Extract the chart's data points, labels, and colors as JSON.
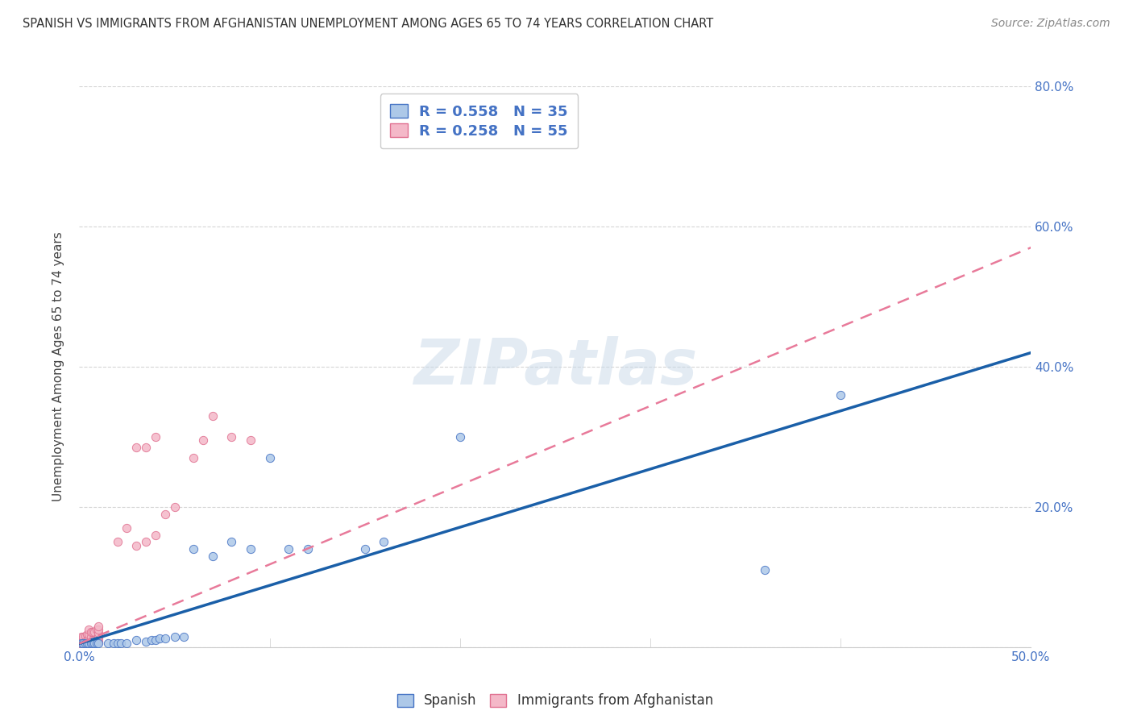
{
  "title": "SPANISH VS IMMIGRANTS FROM AFGHANISTAN UNEMPLOYMENT AMONG AGES 65 TO 74 YEARS CORRELATION CHART",
  "source": "Source: ZipAtlas.com",
  "ylabel": "Unemployment Among Ages 65 to 74 years",
  "xlim": [
    0.0,
    0.5
  ],
  "ylim": [
    0.0,
    0.8
  ],
  "xticks": [
    0.0,
    0.1,
    0.2,
    0.3,
    0.4,
    0.5
  ],
  "yticks": [
    0.0,
    0.2,
    0.4,
    0.6,
    0.8
  ],
  "spanish_color": "#adc8e8",
  "afghan_color": "#f4b8c8",
  "spanish_edge_color": "#4472c4",
  "afghan_edge_color": "#e07090",
  "spanish_line_color": "#1a5fa8",
  "afghan_line_color": "#e87a9a",
  "r_spanish": 0.558,
  "n_spanish": 35,
  "r_afghan": 0.258,
  "n_afghan": 55,
  "watermark": "ZIPatlas",
  "label_color": "#4472c4",
  "spanish_label": "Spanish",
  "afghan_label": "Immigrants from Afghanistan",
  "spanish_points_x": [
    0.001,
    0.002,
    0.003,
    0.004,
    0.005,
    0.006,
    0.007,
    0.008,
    0.009,
    0.01,
    0.015,
    0.018,
    0.02,
    0.022,
    0.025,
    0.03,
    0.035,
    0.038,
    0.04,
    0.042,
    0.045,
    0.05,
    0.055,
    0.06,
    0.07,
    0.08,
    0.09,
    0.1,
    0.11,
    0.12,
    0.15,
    0.16,
    0.2,
    0.36,
    0.4
  ],
  "spanish_points_y": [
    0.005,
    0.005,
    0.005,
    0.005,
    0.005,
    0.005,
    0.005,
    0.005,
    0.005,
    0.005,
    0.005,
    0.005,
    0.005,
    0.005,
    0.005,
    0.01,
    0.008,
    0.01,
    0.01,
    0.012,
    0.012,
    0.015,
    0.015,
    0.14,
    0.13,
    0.15,
    0.14,
    0.27,
    0.14,
    0.14,
    0.14,
    0.15,
    0.3,
    0.11,
    0.36
  ],
  "afghan_points_x": [
    0.001,
    0.001,
    0.001,
    0.001,
    0.001,
    0.001,
    0.001,
    0.001,
    0.001,
    0.001,
    0.002,
    0.002,
    0.002,
    0.002,
    0.003,
    0.003,
    0.003,
    0.004,
    0.004,
    0.004,
    0.005,
    0.005,
    0.005,
    0.005,
    0.005,
    0.006,
    0.006,
    0.006,
    0.007,
    0.007,
    0.008,
    0.008,
    0.009,
    0.009,
    0.01,
    0.01,
    0.01,
    0.01,
    0.01,
    0.01,
    0.02,
    0.025,
    0.03,
    0.03,
    0.035,
    0.035,
    0.04,
    0.04,
    0.045,
    0.05,
    0.06,
    0.065,
    0.07,
    0.08,
    0.09
  ],
  "afghan_points_y": [
    0.003,
    0.004,
    0.005,
    0.006,
    0.007,
    0.008,
    0.01,
    0.012,
    0.014,
    0.015,
    0.004,
    0.006,
    0.01,
    0.015,
    0.005,
    0.008,
    0.016,
    0.006,
    0.01,
    0.018,
    0.005,
    0.008,
    0.012,
    0.018,
    0.025,
    0.008,
    0.015,
    0.022,
    0.01,
    0.022,
    0.01,
    0.022,
    0.012,
    0.025,
    0.008,
    0.012,
    0.016,
    0.02,
    0.025,
    0.03,
    0.15,
    0.17,
    0.145,
    0.285,
    0.15,
    0.285,
    0.16,
    0.3,
    0.19,
    0.2,
    0.27,
    0.295,
    0.33,
    0.3,
    0.295
  ],
  "spanish_line_x0": 0.0,
  "spanish_line_y0": 0.005,
  "spanish_line_x1": 0.5,
  "spanish_line_y1": 0.42,
  "afghan_line_x0": 0.0,
  "afghan_line_y0": 0.005,
  "afghan_line_x1": 0.5,
  "afghan_line_y1": 0.57
}
